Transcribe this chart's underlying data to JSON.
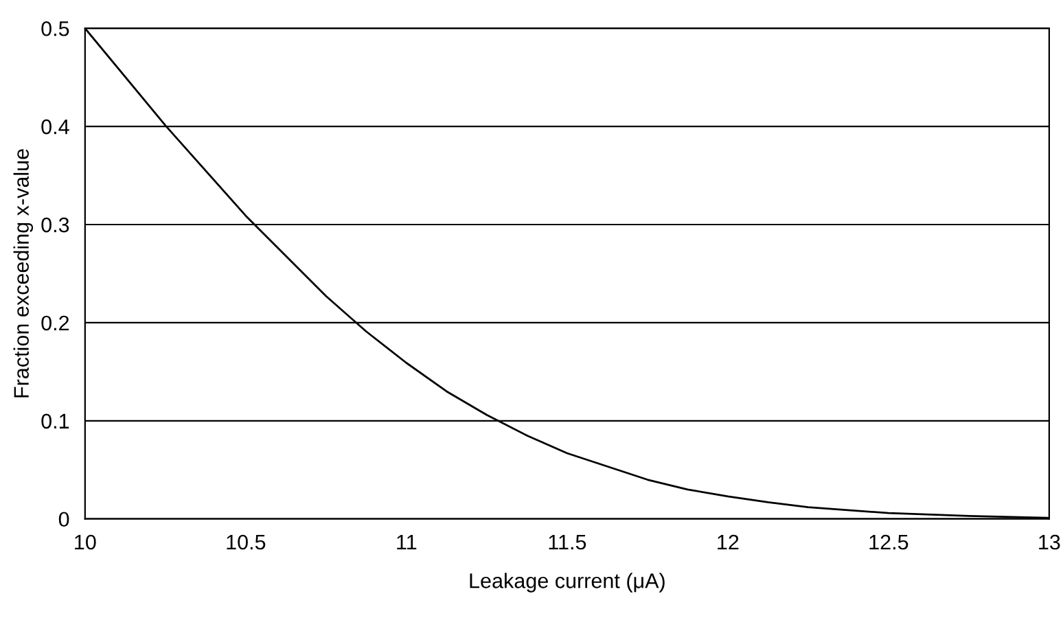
{
  "chart_data": {
    "type": "line",
    "xlabel": "Leakage current (μA)",
    "ylabel": "Fraction exceeding x-value",
    "x": [
      10,
      10.25,
      10.5,
      10.75,
      10.875,
      11,
      11.125,
      11.25,
      11.375,
      11.5,
      11.75,
      11.875,
      12,
      12.125,
      12.25,
      12.5,
      12.75,
      13
    ],
    "series": [
      {
        "color": "#000000",
        "values": [
          0.5,
          0.401,
          0.309,
          0.227,
          0.191,
          0.159,
          0.13,
          0.106,
          0.085,
          0.067,
          0.04,
          0.03,
          0.023,
          0.017,
          0.012,
          0.006,
          0.003,
          0.001
        ]
      }
    ],
    "xlim": [
      10,
      13
    ],
    "xticks": [
      10,
      10.5,
      11,
      11.5,
      12,
      12.5,
      13
    ],
    "ylim": [
      0,
      0.5
    ],
    "yticks": [
      0,
      0.1,
      0.2,
      0.3,
      0.4,
      0.5
    ],
    "grid": "y",
    "legend": false,
    "marker": "none",
    "line_style": "solid"
  }
}
